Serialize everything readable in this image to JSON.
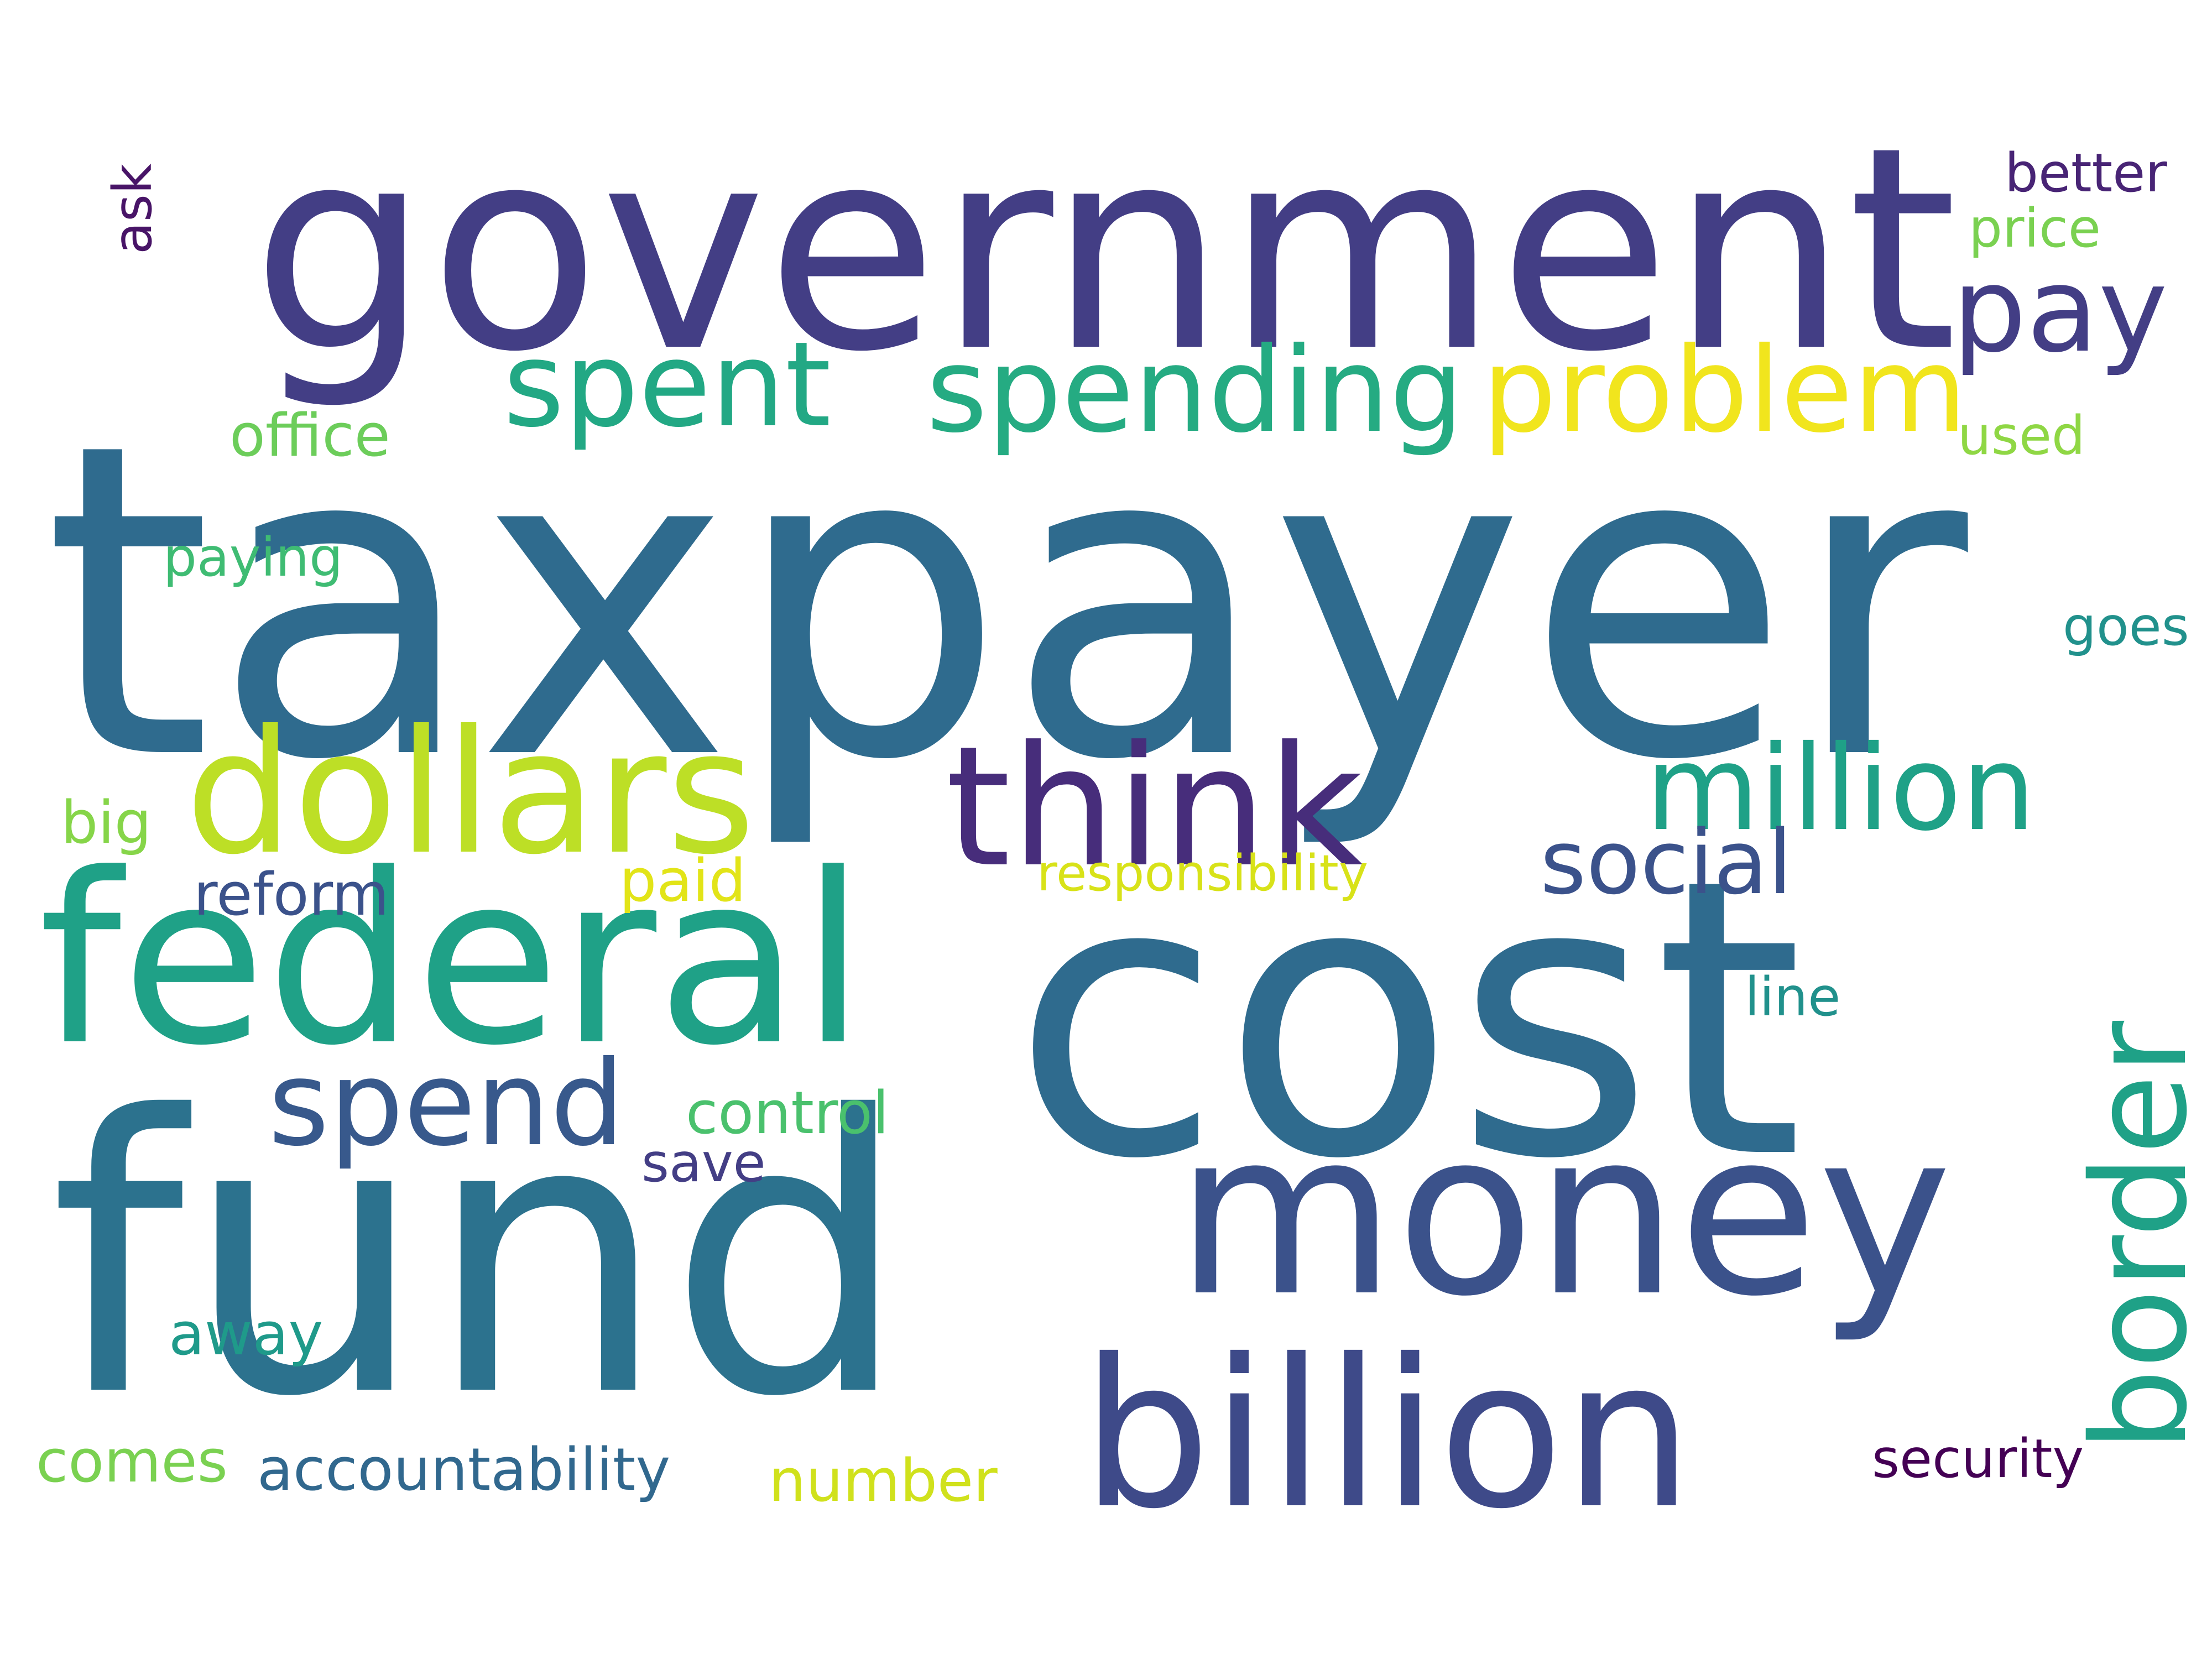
{
  "words": {
    "taxpayer": {
      "text": "taxpayer",
      "color": "#2f6b8e"
    },
    "cost": {
      "text": "cost",
      "color": "#2f6b8e"
    },
    "fund": {
      "text": "fund",
      "color": "#2c728e"
    },
    "government": {
      "text": "government",
      "color": "#433e85"
    },
    "federal": {
      "text": "federal",
      "color": "#1fa187"
    },
    "money": {
      "text": "money",
      "color": "#3b528b"
    },
    "billion": {
      "text": "billion",
      "color": "#3e4a89"
    },
    "dollars": {
      "text": "dollars",
      "color": "#bddf26"
    },
    "think": {
      "text": "think",
      "color": "#472d7b"
    },
    "border": {
      "text": "border",
      "color": "#1fa187"
    },
    "spending": {
      "text": "spending",
      "color": "#25ab82"
    },
    "problem": {
      "text": "problem",
      "color": "#f1e51d"
    },
    "spent": {
      "text": "spent",
      "color": "#22a884"
    },
    "pay": {
      "text": "pay",
      "color": "#433e85"
    },
    "million": {
      "text": "million",
      "color": "#1fa187"
    },
    "spend": {
      "text": "spend",
      "color": "#38598c"
    },
    "social": {
      "text": "social",
      "color": "#3b528b"
    },
    "office": {
      "text": "office",
      "color": "#6ccd5a"
    },
    "paying": {
      "text": "paying",
      "color": "#3fbc73"
    },
    "reform": {
      "text": "reform",
      "color": "#3b528b"
    },
    "paid": {
      "text": "paid",
      "color": "#e2e418"
    },
    "responsibility": {
      "text": "responsibility",
      "color": "#d8e219"
    },
    "control": {
      "text": "control",
      "color": "#4ac16d"
    },
    "save": {
      "text": "save",
      "color": "#433e85"
    },
    "big": {
      "text": "big",
      "color": "#86d549"
    },
    "away": {
      "text": "away",
      "color": "#1f9a8a"
    },
    "comes": {
      "text": "comes",
      "color": "#7ad151"
    },
    "accountability": {
      "text": "accountability",
      "color": "#31688e"
    },
    "number": {
      "text": "number",
      "color": "#d0e11c"
    },
    "security": {
      "text": "security",
      "color": "#440154"
    },
    "line": {
      "text": "line",
      "color": "#21918c"
    },
    "goes": {
      "text": "goes",
      "color": "#21918c"
    },
    "used": {
      "text": "used",
      "color": "#8fd744"
    },
    "price": {
      "text": "price",
      "color": "#7ad151"
    },
    "better": {
      "text": "better",
      "color": "#482475"
    },
    "ask": {
      "text": "ask",
      "color": "#481467"
    }
  }
}
